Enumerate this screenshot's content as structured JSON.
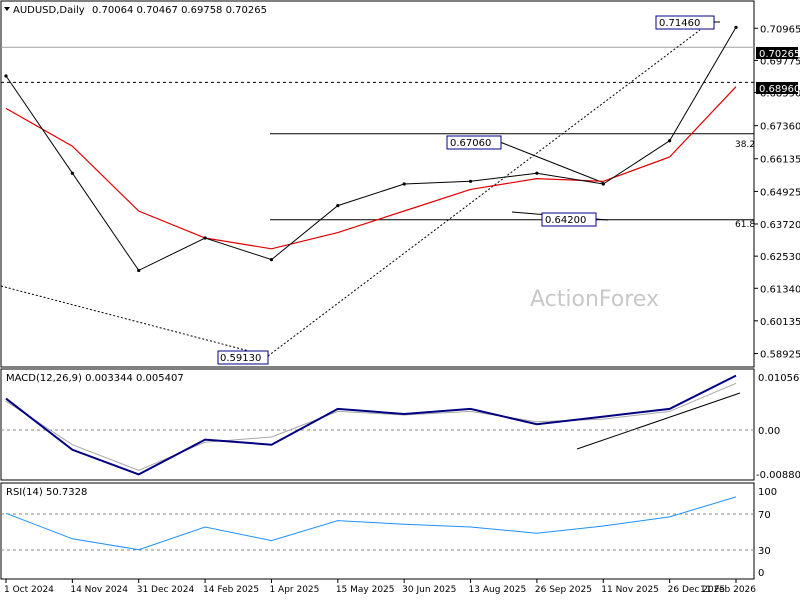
{
  "header": {
    "symbol": "AUDUSD,Daily",
    "ohlc": "0.70064 0.70467 0.69758 0.70265"
  },
  "watermark": "ActionForex",
  "colors": {
    "price_line": "#000000",
    "sma": "#e00000",
    "macd": "#000080",
    "macd_signal": "#a8a8a8",
    "rsi": "#1e90ff",
    "grid_dash": "#888888",
    "label_border": "#000080",
    "current_price_bg": "#000000"
  },
  "annotations": {
    "high_label": "0.71460",
    "peak_label": "0.67060",
    "low_label": "0.64200",
    "bottom_label": "0.59130",
    "fib_382": "38.2",
    "fib_618": "61.8"
  },
  "price_axis": {
    "ticks": [
      "0.70965",
      "0.69775",
      "0.68590",
      "0.67360",
      "0.66135",
      "0.64925",
      "0.63720",
      "0.62530",
      "0.61340",
      "0.60135",
      "0.58925"
    ],
    "current": "0.70265",
    "marked": "0.68960"
  },
  "macd_panel": {
    "label": "MACD(12,26,9) 0.003344 0.005407",
    "ticks": [
      "0.010567",
      "0.00",
      "-0.008808"
    ]
  },
  "rsi_panel": {
    "label": "RSI(14) 50.7328",
    "ticks": [
      "100",
      "70",
      "30",
      "0"
    ]
  },
  "x_axis": {
    "ticks": [
      "1 Oct 2024",
      "14 Nov 2024",
      "31 Dec 2024",
      "14 Feb 2025",
      "1 Apr 2025",
      "15 May 2025",
      "30 Jun 2025",
      "13 Aug 2025",
      "26 Sep 2025",
      "11 Nov 2025",
      "26 Dec 2025",
      "11 Feb 2026"
    ]
  },
  "chart_data": {
    "type": "line",
    "title": "AUDUSD,Daily",
    "x": [
      "1 Oct 2024",
      "14 Nov 2024",
      "31 Dec 2024",
      "14 Feb 2025",
      "1 Apr 2025",
      "15 May 2025",
      "30 Jun 2025",
      "13 Aug 2025",
      "26 Sep 2025",
      "11 Nov 2025",
      "26 Dec 2025",
      "11 Feb 2026"
    ],
    "series": [
      {
        "values": [
          0.692,
          0.656,
          0.62,
          0.632,
          0.624,
          0.644,
          0.652,
          0.653,
          0.656,
          0.652,
          0.668,
          0.71
        ]
      }
    ],
    "ylim": [
      0.585,
      0.719
    ],
    "points": [
      {
        "date": "1 Oct 2024",
        "close": 0.692
      },
      {
        "date": "14 Nov 2024",
        "close": 0.656
      },
      {
        "date": "31 Dec 2024",
        "close": 0.62
      },
      {
        "date": "14 Feb 2025",
        "close": 0.632
      },
      {
        "date": "1 Apr 2025",
        "close": 0.624
      },
      {
        "date": "15 May 2025",
        "close": 0.644
      },
      {
        "date": "30 Jun 2025",
        "close": 0.652
      },
      {
        "date": "13 Aug 2025",
        "close": 0.653
      },
      {
        "date": "26 Sep 2025",
        "close": 0.656
      },
      {
        "date": "11 Nov 2025",
        "close": 0.652
      },
      {
        "date": "26 Dec 2025",
        "close": 0.668
      },
      {
        "date": "11 Feb 2026",
        "close": 0.71
      }
    ],
    "sma": [
      {
        "date": "1 Oct 2024",
        "value": 0.68
      },
      {
        "date": "14 Nov 2024",
        "value": 0.666
      },
      {
        "date": "31 Dec 2024",
        "value": 0.642
      },
      {
        "date": "14 Feb 2025",
        "value": 0.632
      },
      {
        "date": "1 Apr 2025",
        "value": 0.628
      },
      {
        "date": "15 May 2025",
        "value": 0.634
      },
      {
        "date": "30 Jun 2025",
        "value": 0.642
      },
      {
        "date": "13 Aug 2025",
        "value": 0.65
      },
      {
        "date": "26 Sep 2025",
        "value": 0.654
      },
      {
        "date": "11 Nov 2025",
        "value": 0.653
      },
      {
        "date": "26 Dec 2025",
        "value": 0.662
      },
      {
        "date": "11 Feb 2026",
        "value": 0.688
      }
    ],
    "horizontal_levels": [
      0.70265,
      0.6896,
      0.6706,
      0.6388
    ],
    "swing_points": [
      {
        "label": "0.71460",
        "date": "11 Feb 2026",
        "value": 0.7146
      },
      {
        "label": "0.67060",
        "date": "13 Aug 2025",
        "value": 0.6706
      },
      {
        "label": "0.64200",
        "date": "11 Nov 2025",
        "value": 0.642
      },
      {
        "label": "0.59130",
        "date": "1 Apr 2025",
        "value": 0.5913
      }
    ],
    "macd": {
      "ylim": [
        -0.0095,
        0.0112
      ],
      "macd_line": [
        0.006,
        -0.004,
        -0.0088,
        -0.002,
        -0.003,
        0.004,
        0.003,
        0.004,
        0.001,
        0.0025,
        0.004,
        0.0105
      ],
      "signal_line": [
        0.0055,
        -0.003,
        -0.008,
        -0.0025,
        -0.0015,
        0.0035,
        0.0028,
        0.0035,
        0.0015,
        0.002,
        0.0035,
        0.009
      ]
    },
    "rsi": {
      "ylim": [
        0,
        100
      ],
      "values": [
        70,
        42,
        30,
        55,
        40,
        62,
        58,
        55,
        48,
        56,
        66,
        88
      ]
    }
  }
}
